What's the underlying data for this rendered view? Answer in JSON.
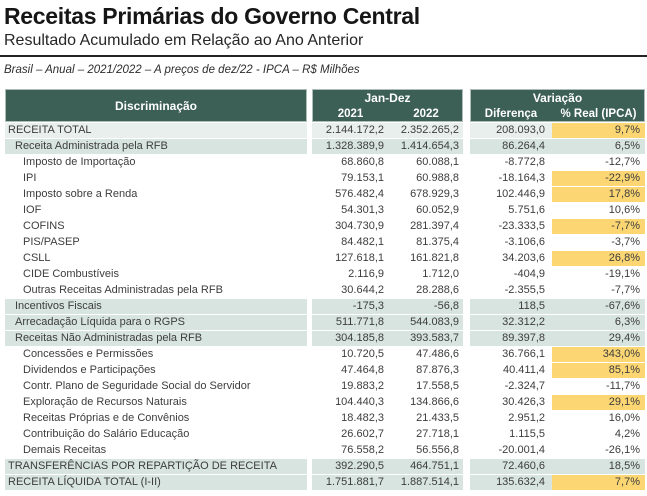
{
  "header": {
    "title": "Receitas Primárias do Governo Central",
    "subtitle": "Resultado Acumulado em Relação ao Ano Anterior",
    "note": "Brasil – Anual – 2021/2022 – A preços de dez/22 - IPCA – R$ Milhões"
  },
  "colors": {
    "header_bg": "#3C5F56",
    "header_text": "#FFFFFF",
    "section_row_bg": "#D7E4E0",
    "total_row_bg": "#E8EFEC",
    "highlight_bg": "#FBD672",
    "body_text": "#3D3D3D",
    "rule": "#242424"
  },
  "table": {
    "header": {
      "discrimination": "Discriminação",
      "period_group": "Jan-Dez",
      "col_2021": "2021",
      "col_2022": "2022",
      "variation_group": "Variação",
      "col_diff": "Diferença",
      "col_pct": "% Real (IPCA)"
    },
    "rows": [
      {
        "label": "RECEITA TOTAL",
        "indent": 0,
        "shade": "total",
        "v2021": "2.144.172,2",
        "v2022": "2.352.265,2",
        "diff": "208.093,0",
        "pct": "9,7%",
        "highlight": true
      },
      {
        "label": "Receita Administrada pela RFB",
        "indent": 1,
        "shade": "section",
        "v2021": "1.328.389,9",
        "v2022": "1.414.654,3",
        "diff": "86.264,4",
        "pct": "6,5%",
        "highlight": false
      },
      {
        "label": "Imposto de Importação",
        "indent": 2,
        "shade": "none",
        "v2021": "68.860,8",
        "v2022": "60.088,1",
        "diff": "-8.772,8",
        "pct": "-12,7%",
        "highlight": false
      },
      {
        "label": "IPI",
        "indent": 2,
        "shade": "none",
        "v2021": "79.153,1",
        "v2022": "60.988,8",
        "diff": "-18.164,3",
        "pct": "-22,9%",
        "highlight": true
      },
      {
        "label": "Imposto sobre a Renda",
        "indent": 2,
        "shade": "none",
        "v2021": "576.482,4",
        "v2022": "678.929,3",
        "diff": "102.446,9",
        "pct": "17,8%",
        "highlight": true
      },
      {
        "label": "IOF",
        "indent": 2,
        "shade": "none",
        "v2021": "54.301,3",
        "v2022": "60.052,9",
        "diff": "5.751,6",
        "pct": "10,6%",
        "highlight": false
      },
      {
        "label": "COFINS",
        "indent": 2,
        "shade": "none",
        "v2021": "304.730,9",
        "v2022": "281.397,4",
        "diff": "-23.333,5",
        "pct": "-7,7%",
        "highlight": true
      },
      {
        "label": "PIS/PASEP",
        "indent": 2,
        "shade": "none",
        "v2021": "84.482,1",
        "v2022": "81.375,4",
        "diff": "-3.106,6",
        "pct": "-3,7%",
        "highlight": false
      },
      {
        "label": "CSLL",
        "indent": 2,
        "shade": "none",
        "v2021": "127.618,1",
        "v2022": "161.821,8",
        "diff": "34.203,6",
        "pct": "26,8%",
        "highlight": true
      },
      {
        "label": "CIDE  Combustíveis",
        "indent": 2,
        "shade": "none",
        "v2021": "2.116,9",
        "v2022": "1.712,0",
        "diff": "-404,9",
        "pct": "-19,1%",
        "highlight": false
      },
      {
        "label": "Outras Receitas Administradas pela RFB",
        "indent": 2,
        "shade": "none",
        "v2021": "30.644,2",
        "v2022": "28.288,6",
        "diff": "-2.355,5",
        "pct": "-7,7%",
        "highlight": false
      },
      {
        "label": "Incentivos Fiscais",
        "indent": 1,
        "shade": "section",
        "v2021": "-175,3",
        "v2022": "-56,8",
        "diff": "118,5",
        "pct": "-67,6%",
        "highlight": false
      },
      {
        "label": "Arrecadação Líquida para o RGPS",
        "indent": 1,
        "shade": "section",
        "v2021": "511.771,8",
        "v2022": "544.083,9",
        "diff": "32.312,2",
        "pct": "6,3%",
        "highlight": false
      },
      {
        "label": "Receitas Não Administradas pela RFB",
        "indent": 1,
        "shade": "section",
        "v2021": "304.185,8",
        "v2022": "393.583,7",
        "diff": "89.397,8",
        "pct": "29,4%",
        "highlight": false
      },
      {
        "label": "Concessões e Permissões",
        "indent": 2,
        "shade": "none",
        "v2021": "10.720,5",
        "v2022": "47.486,6",
        "diff": "36.766,1",
        "pct": "343,0%",
        "highlight": true
      },
      {
        "label": "Dividendos e Participações",
        "indent": 2,
        "shade": "none",
        "v2021": "47.464,8",
        "v2022": "87.876,3",
        "diff": "40.411,4",
        "pct": "85,1%",
        "highlight": true
      },
      {
        "label": "Contr. Plano de Seguridade Social do Servidor",
        "indent": 2,
        "shade": "none",
        "v2021": "19.883,2",
        "v2022": "17.558,5",
        "diff": "-2.324,7",
        "pct": "-11,7%",
        "highlight": false
      },
      {
        "label": "Exploração de Recursos Naturais",
        "indent": 2,
        "shade": "none",
        "v2021": "104.440,3",
        "v2022": "134.866,6",
        "diff": "30.426,3",
        "pct": "29,1%",
        "highlight": true
      },
      {
        "label": "Receitas Próprias e de Convênios",
        "indent": 2,
        "shade": "none",
        "v2021": "18.482,3",
        "v2022": "21.433,5",
        "diff": "2.951,2",
        "pct": "16,0%",
        "highlight": false
      },
      {
        "label": "Contribuição do Salário Educação",
        "indent": 2,
        "shade": "none",
        "v2021": "26.602,7",
        "v2022": "27.718,1",
        "diff": "1.115,5",
        "pct": "4,2%",
        "highlight": false
      },
      {
        "label": "Demais Receitas",
        "indent": 2,
        "shade": "none",
        "v2021": "76.558,2",
        "v2022": "56.556,8",
        "diff": "-20.001,4",
        "pct": "-26,1%",
        "highlight": false
      },
      {
        "label": "TRANSFERÊNCIAS POR REPARTIÇÃO DE RECEITA",
        "indent": 0,
        "shade": "section",
        "v2021": "392.290,5",
        "v2022": "464.751,1",
        "diff": "72.460,6",
        "pct": "18,5%",
        "highlight": false
      },
      {
        "label": "RECEITA LÍQUIDA TOTAL (I-II)",
        "indent": 0,
        "shade": "section",
        "v2021": "1.751.881,7",
        "v2022": "1.887.514,1",
        "diff": "135.632,4",
        "pct": "7,7%",
        "highlight": true
      }
    ]
  }
}
